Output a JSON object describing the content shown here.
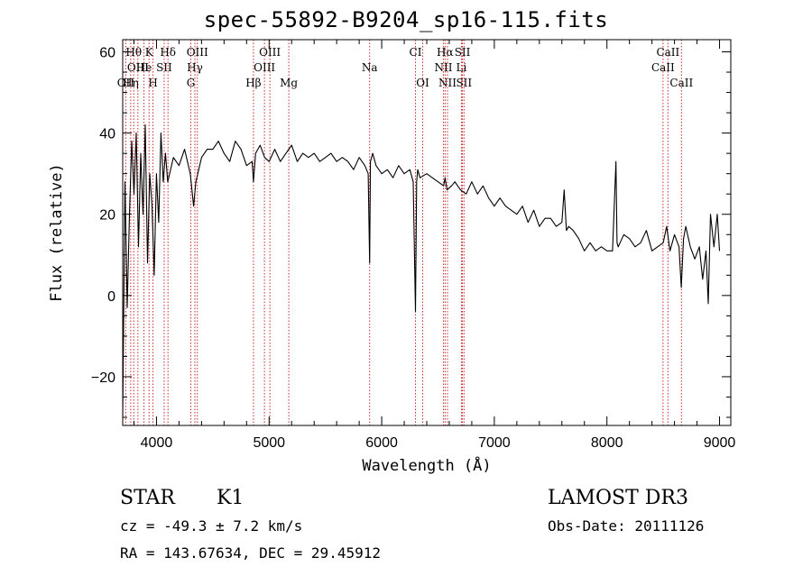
{
  "chart_data": {
    "type": "line",
    "title": "spec-55892-B9204_sp16-115.fits",
    "xlabel": "Wavelength (Å)",
    "ylabel": "Flux (relative)",
    "xlim": [
      3700,
      9100
    ],
    "ylim": [
      -32,
      63
    ],
    "xticks": [
      4000,
      5000,
      6000,
      7000,
      8000,
      9000
    ],
    "yticks": [
      -20,
      0,
      20,
      40,
      60
    ],
    "series": [
      {
        "name": "flux",
        "x": [
          3700,
          3720,
          3740,
          3760,
          3780,
          3800,
          3820,
          3840,
          3860,
          3880,
          3900,
          3920,
          3940,
          3960,
          3980,
          4000,
          4020,
          4040,
          4060,
          4080,
          4100,
          4150,
          4200,
          4250,
          4300,
          4330,
          4350,
          4400,
          4450,
          4500,
          4550,
          4600,
          4650,
          4700,
          4750,
          4800,
          4850,
          4861,
          4880,
          4920,
          4960,
          5000,
          5050,
          5100,
          5150,
          5200,
          5250,
          5300,
          5350,
          5400,
          5450,
          5500,
          5550,
          5600,
          5650,
          5700,
          5750,
          5800,
          5850,
          5880,
          5893,
          5900,
          5920,
          5950,
          6000,
          6050,
          6100,
          6150,
          6200,
          6250,
          6280,
          6300,
          6310,
          6320,
          6340,
          6400,
          6450,
          6500,
          6550,
          6563,
          6580,
          6620,
          6650,
          6700,
          6750,
          6800,
          6850,
          6900,
          6950,
          7000,
          7050,
          7100,
          7150,
          7200,
          7250,
          7300,
          7350,
          7400,
          7450,
          7500,
          7550,
          7600,
          7620,
          7640,
          7660,
          7700,
          7750,
          7800,
          7850,
          7900,
          7950,
          8000,
          8050,
          8080,
          8090,
          8100,
          8150,
          8200,
          8250,
          8300,
          8350,
          8400,
          8450,
          8500,
          8530,
          8560,
          8600,
          8640,
          8660,
          8680,
          8700,
          8740,
          8780,
          8820,
          8850,
          8880,
          8900,
          8920,
          8950,
          8980,
          9000
        ],
        "values": [
          -30,
          28,
          -3,
          20,
          38,
          25,
          40,
          12,
          35,
          20,
          42,
          8,
          30,
          22,
          5,
          30,
          18,
          40,
          28,
          35,
          28,
          34,
          32,
          36,
          30,
          22,
          28,
          34,
          36,
          36,
          38,
          35,
          33,
          38,
          36,
          32,
          33,
          28,
          35,
          37,
          34,
          33,
          36,
          33,
          35,
          37,
          33,
          35,
          34,
          35,
          33,
          34,
          35,
          33,
          34,
          33,
          31,
          34,
          32,
          30,
          8,
          33,
          35,
          32,
          30,
          31,
          29,
          32,
          30,
          31,
          28,
          -4,
          28,
          31,
          29,
          30,
          29,
          28,
          27,
          29,
          26,
          27,
          28,
          26,
          25,
          28,
          25,
          27,
          24,
          22,
          24,
          22,
          21,
          20,
          22,
          18,
          21,
          17,
          19,
          19,
          17,
          18,
          26,
          16,
          17,
          16,
          14,
          11,
          13,
          11,
          12,
          11,
          11,
          33,
          13,
          12,
          15,
          14,
          12,
          13,
          16,
          11,
          12,
          13,
          17,
          11,
          15,
          12,
          2,
          14,
          17,
          12,
          9,
          12,
          4,
          11,
          -2,
          20,
          12,
          20,
          11
        ]
      }
    ],
    "lines": [
      {
        "label": "Hθ",
        "wl": 3798,
        "row": 0
      },
      {
        "label": "K",
        "wl": 3934,
        "row": 0
      },
      {
        "label": "Hδ",
        "wl": 4102,
        "row": 0
      },
      {
        "label": "OIII",
        "wl": 4363,
        "row": 0
      },
      {
        "label": "OIII",
        "wl": 5007,
        "row": 0
      },
      {
        "label": "CI",
        "wl": 6300,
        "row": 0
      },
      {
        "label": "Hα",
        "wl": 6563,
        "row": 0
      },
      {
        "label": "SII",
        "wl": 6717,
        "row": 0
      },
      {
        "label": "CaII",
        "wl": 8542,
        "row": 0
      },
      {
        "label": "OIII",
        "wl": 3835,
        "row": 1
      },
      {
        "label": "He",
        "wl": 3889,
        "row": 1
      },
      {
        "label": "SII",
        "wl": 4068,
        "row": 1
      },
      {
        "label": "Hγ",
        "wl": 4341,
        "row": 1
      },
      {
        "label": "OIII",
        "wl": 4959,
        "row": 1
      },
      {
        "label": "Na",
        "wl": 5893,
        "row": 1
      },
      {
        "label": "NII",
        "wl": 6548,
        "row": 1
      },
      {
        "label": "Li",
        "wl": 6708,
        "row": 1
      },
      {
        "label": "CaII",
        "wl": 8498,
        "row": 1
      },
      {
        "label": "OII",
        "wl": 3727,
        "row": 2
      },
      {
        "label": "Hη",
        "wl": 3771,
        "row": 2
      },
      {
        "label": "H",
        "wl": 3969,
        "row": 2
      },
      {
        "label": "G",
        "wl": 4305,
        "row": 2
      },
      {
        "label": "Hβ",
        "wl": 4861,
        "row": 2
      },
      {
        "label": "Mg",
        "wl": 5175,
        "row": 2
      },
      {
        "label": "OI",
        "wl": 6364,
        "row": 2
      },
      {
        "label": "NII",
        "wl": 6584,
        "row": 2
      },
      {
        "label": "SII",
        "wl": 6731,
        "row": 2
      },
      {
        "label": "CaII",
        "wl": 8662,
        "row": 2
      }
    ]
  },
  "info": {
    "object_class": "STAR",
    "subclass": "K1",
    "redshift": "cz = -49.3 ± 7.2 km/s",
    "coords": "RA = 143.67634, DEC =  29.45912",
    "survey": "LAMOST DR3",
    "obs_date": "Obs-Date: 20111126"
  },
  "colors": {
    "line_marker": "#cc2a2a",
    "spectrum": "#000000"
  }
}
